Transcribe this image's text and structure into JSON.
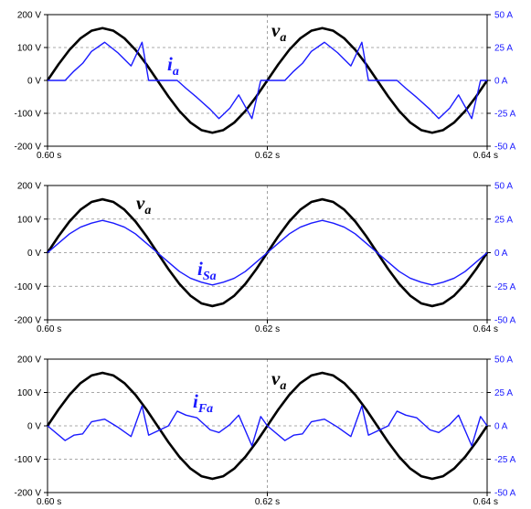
{
  "chart_data": [
    {
      "type": "line",
      "x_ticks": [
        "0.60 s",
        "0.62 s",
        "0.64 s"
      ],
      "xlim": [
        0.6,
        0.64
      ],
      "y_left": {
        "ticks": [
          "200 V",
          "100 V",
          "0 V",
          "-100 V",
          "-200 V"
        ],
        "lim": [
          -200,
          200
        ],
        "unit": "V"
      },
      "y_right": {
        "ticks": [
          "50 A",
          "25 A",
          "0 A",
          "-25 A",
          "-50 A"
        ],
        "lim": [
          -50,
          50
        ],
        "unit": "A"
      },
      "grid": true,
      "series": [
        {
          "name": "v_a",
          "axis": "left",
          "color": "#000000",
          "x": [
            0.6,
            0.601,
            0.602,
            0.603,
            0.604,
            0.605,
            0.606,
            0.607,
            0.608,
            0.609,
            0.61,
            0.611,
            0.612,
            0.613,
            0.614,
            0.615,
            0.616,
            0.617,
            0.618,
            0.619,
            0.62,
            0.621,
            0.622,
            0.623,
            0.624,
            0.625,
            0.626,
            0.627,
            0.628,
            0.629,
            0.63,
            0.631,
            0.632,
            0.633,
            0.634,
            0.635,
            0.636,
            0.637,
            0.638,
            0.639,
            0.64
          ],
          "values": [
            0,
            49,
            93,
            128,
            151,
            159,
            151,
            128,
            93,
            49,
            0,
            -49,
            -93,
            -128,
            -151,
            -159,
            -151,
            -128,
            -93,
            -49,
            0,
            49,
            93,
            128,
            151,
            159,
            151,
            128,
            93,
            49,
            0,
            -49,
            -93,
            -128,
            -151,
            -159,
            -151,
            -128,
            -93,
            -49,
            0
          ]
        },
        {
          "name": "i_a",
          "axis": "right",
          "color": "#1a1aff",
          "x": [
            0.6,
            0.6016,
            0.6024,
            0.6032,
            0.604,
            0.6052,
            0.6064,
            0.6076,
            0.6086,
            0.6092,
            0.611,
            0.6118,
            0.6126,
            0.6136,
            0.6148,
            0.6156,
            0.6166,
            0.6174,
            0.6186,
            0.6194,
            0.62,
            0.6216,
            0.6224,
            0.6232,
            0.624,
            0.6252,
            0.6264,
            0.6276,
            0.6286,
            0.6292,
            0.631,
            0.6318,
            0.6326,
            0.6336,
            0.6348,
            0.6356,
            0.6366,
            0.6374,
            0.6386,
            0.6394,
            0.64
          ],
          "values": [
            0,
            0,
            7,
            13,
            22,
            29,
            21,
            11,
            29,
            0,
            0,
            0,
            -6,
            -13,
            -22,
            -29,
            -21,
            -11,
            -29,
            0,
            0,
            0,
            7,
            13,
            22,
            29,
            21,
            11,
            29,
            0,
            0,
            0,
            -6,
            -13,
            -22,
            -29,
            -21,
            -11,
            -29,
            0,
            0
          ]
        }
      ],
      "labels": [
        {
          "base": "v",
          "sub": "a",
          "series": "v_a"
        },
        {
          "base": "i",
          "sub": "a",
          "series": "i_a"
        }
      ]
    },
    {
      "type": "line",
      "x_ticks": [
        "0.60 s",
        "0.62 s",
        "0.64 s"
      ],
      "xlim": [
        0.6,
        0.64
      ],
      "y_left": {
        "ticks": [
          "200 V",
          "100 V",
          "0 V",
          "-100 V",
          "-200 V"
        ],
        "lim": [
          -200,
          200
        ],
        "unit": "V"
      },
      "y_right": {
        "ticks": [
          "50 A",
          "25 A",
          "0 A",
          "-25 A",
          "-50 A"
        ],
        "lim": [
          -50,
          50
        ],
        "unit": "A"
      },
      "grid": true,
      "series": [
        {
          "name": "v_a",
          "axis": "left",
          "color": "#000000",
          "x": [
            0.6,
            0.601,
            0.602,
            0.603,
            0.604,
            0.605,
            0.606,
            0.607,
            0.608,
            0.609,
            0.61,
            0.611,
            0.612,
            0.613,
            0.614,
            0.615,
            0.616,
            0.617,
            0.618,
            0.619,
            0.62,
            0.621,
            0.622,
            0.623,
            0.624,
            0.625,
            0.626,
            0.627,
            0.628,
            0.629,
            0.63,
            0.631,
            0.632,
            0.633,
            0.634,
            0.635,
            0.636,
            0.637,
            0.638,
            0.639,
            0.64
          ],
          "values": [
            0,
            49,
            93,
            128,
            151,
            159,
            151,
            128,
            93,
            49,
            0,
            -49,
            -93,
            -128,
            -151,
            -159,
            -151,
            -128,
            -93,
            -49,
            0,
            49,
            93,
            128,
            151,
            159,
            151,
            128,
            93,
            49,
            0,
            -49,
            -93,
            -128,
            -151,
            -159,
            -151,
            -128,
            -93,
            -49,
            0
          ]
        },
        {
          "name": "i_Sa",
          "axis": "right",
          "color": "#1a1aff",
          "x": [
            0.6,
            0.601,
            0.602,
            0.603,
            0.604,
            0.605,
            0.606,
            0.607,
            0.608,
            0.609,
            0.61,
            0.611,
            0.612,
            0.613,
            0.614,
            0.615,
            0.616,
            0.617,
            0.618,
            0.619,
            0.62,
            0.621,
            0.622,
            0.623,
            0.624,
            0.625,
            0.626,
            0.627,
            0.628,
            0.629,
            0.63,
            0.631,
            0.632,
            0.633,
            0.634,
            0.635,
            0.636,
            0.637,
            0.638,
            0.639,
            0.64
          ],
          "values": [
            0,
            7,
            14,
            19,
            22,
            24,
            22,
            19,
            14,
            7,
            0,
            -7,
            -14,
            -19,
            -22,
            -24,
            -22,
            -19,
            -14,
            -7,
            0,
            7,
            14,
            19,
            22,
            24,
            22,
            19,
            14,
            7,
            0,
            -7,
            -14,
            -19,
            -22,
            -24,
            -22,
            -19,
            -14,
            -7,
            0
          ]
        }
      ],
      "labels": [
        {
          "base": "v",
          "sub": "a",
          "series": "v_a"
        },
        {
          "base": "i",
          "sub": "Sa",
          "series": "i_Sa"
        }
      ]
    },
    {
      "type": "line",
      "x_ticks": [
        "0.60 s",
        "0.62 s",
        "0.64 s"
      ],
      "xlim": [
        0.6,
        0.64
      ],
      "y_left": {
        "ticks": [
          "200 V",
          "100 V",
          "0 V",
          "-100 V",
          "-200 V"
        ],
        "lim": [
          -200,
          200
        ],
        "unit": "V"
      },
      "y_right": {
        "ticks": [
          "50 A",
          "25 A",
          "0 A",
          "-25 A",
          "-50 A"
        ],
        "lim": [
          -50,
          50
        ],
        "unit": "A"
      },
      "grid": true,
      "series": [
        {
          "name": "v_a",
          "axis": "left",
          "color": "#000000",
          "x": [
            0.6,
            0.601,
            0.602,
            0.603,
            0.604,
            0.605,
            0.606,
            0.607,
            0.608,
            0.609,
            0.61,
            0.611,
            0.612,
            0.613,
            0.614,
            0.615,
            0.616,
            0.617,
            0.618,
            0.619,
            0.62,
            0.621,
            0.622,
            0.623,
            0.624,
            0.625,
            0.626,
            0.627,
            0.628,
            0.629,
            0.63,
            0.631,
            0.632,
            0.633,
            0.634,
            0.635,
            0.636,
            0.637,
            0.638,
            0.639,
            0.64
          ],
          "values": [
            0,
            49,
            93,
            128,
            151,
            159,
            151,
            128,
            93,
            49,
            0,
            -49,
            -93,
            -128,
            -151,
            -159,
            -151,
            -128,
            -93,
            -49,
            0,
            49,
            93,
            128,
            151,
            159,
            151,
            128,
            93,
            49,
            0,
            -49,
            -93,
            -128,
            -151,
            -159,
            -151,
            -128,
            -93,
            -49,
            0
          ]
        },
        {
          "name": "i_Fa",
          "axis": "right",
          "color": "#1a1aff",
          "x": [
            0.6,
            0.6016,
            0.6024,
            0.6032,
            0.604,
            0.6052,
            0.6064,
            0.6076,
            0.6086,
            0.6092,
            0.611,
            0.6118,
            0.6126,
            0.6136,
            0.6148,
            0.6156,
            0.6166,
            0.6174,
            0.6186,
            0.6194,
            0.62,
            0.6216,
            0.6224,
            0.6232,
            0.624,
            0.6252,
            0.6264,
            0.6276,
            0.6286,
            0.6292,
            0.631,
            0.6318,
            0.6326,
            0.6336,
            0.6348,
            0.6356,
            0.6366,
            0.6374,
            0.6386,
            0.6394,
            0.64
          ],
          "values": [
            0,
            -11,
            -7,
            -6,
            3,
            5,
            -1,
            -8,
            15,
            -7,
            0,
            11,
            8,
            6,
            -3,
            -5,
            1,
            8,
            -15,
            7,
            0,
            -11,
            -7,
            -6,
            3,
            5,
            -1,
            -8,
            15,
            -7,
            0,
            11,
            8,
            6,
            -3,
            -5,
            1,
            8,
            -15,
            7,
            0
          ]
        }
      ],
      "labels": [
        {
          "base": "v",
          "sub": "a",
          "series": "v_a"
        },
        {
          "base": "i",
          "sub": "Fa",
          "series": "i_Fa"
        }
      ]
    }
  ]
}
